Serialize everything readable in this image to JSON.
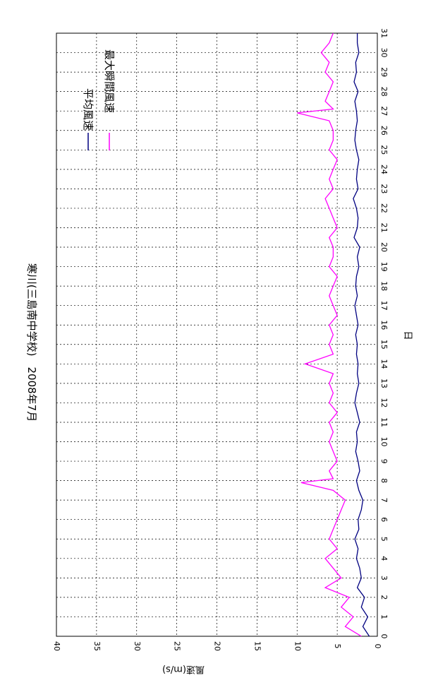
{
  "chart_data": {
    "type": "line",
    "orientation": "rotated-90-clockwise",
    "title": "寒川(三島南中学校)　2008年7月",
    "xlabel": "日",
    "ylabel": "風速(m/s)",
    "xlim": [
      0,
      31
    ],
    "ylim": [
      0,
      40
    ],
    "x_ticks": [
      "0",
      "1",
      "2",
      "3",
      "4",
      "5",
      "6",
      "7",
      "8",
      "9",
      "10",
      "11",
      "12",
      "13",
      "14",
      "15",
      "16",
      "17",
      "18",
      "19",
      "20",
      "21",
      "22",
      "23",
      "24",
      "25",
      "26",
      "27",
      "28",
      "29",
      "30",
      "31"
    ],
    "y_ticks": [
      "0",
      "5",
      "10",
      "15",
      "20",
      "25",
      "30",
      "35",
      "40"
    ],
    "grid": true,
    "legend_position": "top-right",
    "series": [
      {
        "name": "平均風速",
        "color": "#000080",
        "x": [
          0,
          0.5,
          1,
          1.5,
          2,
          2.5,
          3,
          3.5,
          4,
          4.5,
          5,
          5.5,
          6,
          6.5,
          7,
          7.5,
          8,
          8.5,
          9,
          9.5,
          10,
          10.5,
          11,
          11.5,
          12,
          12.5,
          13,
          13.5,
          14,
          14.5,
          15,
          15.5,
          16,
          16.5,
          17,
          17.5,
          18,
          18.5,
          19,
          19.5,
          20,
          20.5,
          21,
          21.5,
          22,
          22.5,
          23,
          23.5,
          24,
          24.5,
          25,
          25.5,
          26,
          26.5,
          27,
          27.5,
          28,
          28.5,
          29,
          29.5,
          30,
          30.5,
          31
        ],
        "values": [
          1.0,
          1.8,
          1.2,
          2.0,
          1.6,
          2.5,
          2.0,
          2.2,
          2.6,
          2.4,
          2.8,
          2.3,
          2.4,
          2.0,
          1.8,
          2.3,
          2.6,
          2.2,
          2.4,
          2.7,
          2.5,
          2.6,
          2.2,
          2.5,
          2.8,
          2.6,
          2.3,
          2.5,
          2.4,
          2.6,
          2.5,
          2.7,
          2.4,
          2.6,
          2.8,
          2.5,
          2.7,
          2.6,
          2.3,
          2.5,
          2.2,
          2.9,
          2.5,
          2.4,
          2.6,
          3.0,
          2.4,
          2.6,
          2.5,
          2.3,
          2.6,
          2.8,
          2.7,
          2.5,
          2.6,
          2.8,
          2.4,
          2.9,
          2.6,
          2.7,
          2.3,
          2.5,
          2.5
        ]
      },
      {
        "name": "最大瞬間風速",
        "color": "#ff00ff",
        "x": [
          0,
          0.5,
          1,
          1.5,
          2,
          2.5,
          3,
          3.5,
          4,
          4.5,
          5,
          5.5,
          6,
          6.5,
          7,
          7.5,
          7.9,
          8.1,
          8.5,
          9,
          9.5,
          10,
          10.5,
          11,
          11.5,
          12,
          12.5,
          13,
          13.5,
          14,
          14.5,
          15,
          15.5,
          16,
          16.5,
          17,
          17.5,
          18,
          18.5,
          19,
          19.5,
          20,
          20.5,
          21,
          21.5,
          22,
          22.5,
          23,
          23.5,
          24,
          24.5,
          25,
          25.5,
          26,
          26.5,
          26.9,
          27.1,
          27.5,
          28,
          28.5,
          29,
          29.5,
          30,
          30.5,
          31
        ],
        "values": [
          2.0,
          4.0,
          3.0,
          4.5,
          3.5,
          6.5,
          4.5,
          5.5,
          6.5,
          5.0,
          6.0,
          5.5,
          5.0,
          4.5,
          4.0,
          5.5,
          9.5,
          5.5,
          6.0,
          5.0,
          5.5,
          6.0,
          5.5,
          6.0,
          5.0,
          6.0,
          5.5,
          6.0,
          5.5,
          9.0,
          5.5,
          6.0,
          5.5,
          6.0,
          5.0,
          5.5,
          6.0,
          5.5,
          5.0,
          6.0,
          5.5,
          5.5,
          6.0,
          5.0,
          5.5,
          6.0,
          6.5,
          5.5,
          6.0,
          5.5,
          5.0,
          6.0,
          5.5,
          5.5,
          6.0,
          10.0,
          5.5,
          6.5,
          6.0,
          5.5,
          6.5,
          6.0,
          7.0,
          6.0,
          5.5
        ]
      }
    ]
  }
}
